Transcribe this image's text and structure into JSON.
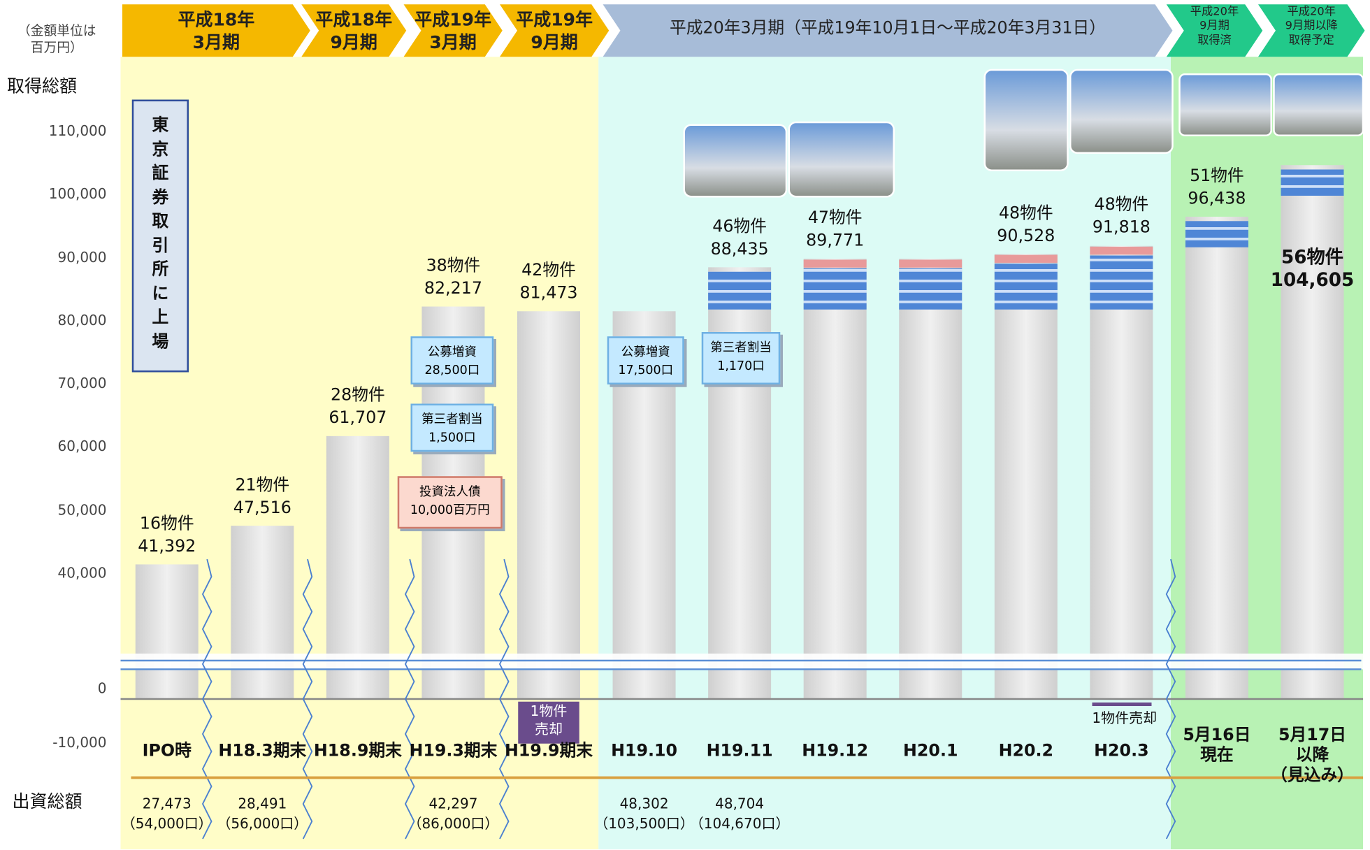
{
  "page": {
    "unit_note": "（金額単位は\n百万円）",
    "acquisition_label": "取得総額",
    "capital_label": "出資総額",
    "listing_note": "東\n京\n証\n券\n取\n引\n所\nに\n上\n場",
    "periods": [
      "平成18年\n3月期",
      "平成18年\n9月期",
      "平成19年\n3月期",
      "平成19年\n9月期",
      "平成20年3月期（平成19年10月1日～平成20年3月31日）",
      "平成20年\n9月期\n取得済",
      "平成20年\n9月期以降\n取得予定"
    ]
  },
  "chart_data": {
    "type": "bar",
    "categories": [
      "IPO時",
      "H18.3期末",
      "H18.9期末",
      "H19.3期末",
      "H19.9期末",
      "H19.10",
      "H19.11",
      "H19.12",
      "H20.1",
      "H20.2",
      "H20.3",
      "5月16日\n現在",
      "5月17日\n以降\n（見込み）"
    ],
    "values": [
      41392,
      47516,
      61707,
      82217,
      81473,
      81473,
      88435,
      89771,
      89771,
      90528,
      91818,
      96438,
      104605
    ],
    "value_labels": [
      "41,392",
      "47,516",
      "61,707",
      "82,217",
      "81,473",
      null,
      "88,435",
      "89,771",
      null,
      "90,528",
      "91,818",
      "96,438",
      "104,605"
    ],
    "property_counts": [
      "16物件",
      "21物件",
      "28物件",
      "38物件",
      "42物件",
      null,
      "46物件",
      "47物件",
      null,
      "48物件",
      "48物件",
      "51物件",
      "56物件"
    ],
    "color": "#dedede",
    "ylim": [
      -10000,
      110000
    ],
    "axis_break": [
      0,
      40000
    ],
    "yticks": [
      {
        "value": -10000,
        "label": "-10,000"
      },
      0,
      {
        "value": 40000,
        "label": "40,000"
      },
      {
        "value": 50000,
        "label": "50,000"
      },
      {
        "value": 60000,
        "label": "60,000"
      },
      {
        "value": 70000,
        "label": "70,000"
      },
      {
        "value": 80000,
        "label": "80,000"
      },
      {
        "value": 90000,
        "label": "90,000"
      },
      {
        "value": 100000,
        "label": "100,000"
      },
      {
        "value": 110000,
        "label": "110,000"
      }
    ],
    "grid": false,
    "callouts": [
      {
        "text": "公募増資\n28,500口",
        "kind": "blue"
      },
      {
        "text": "第三者割当\n1,500口",
        "kind": "blue"
      },
      {
        "text": "投資法人債\n10,000百万円",
        "kind": "pink"
      },
      {
        "text": "公募増資\n17,500口",
        "kind": "blue"
      },
      {
        "text": "第三者割当\n1,170口",
        "kind": "blue"
      }
    ],
    "sale_notes": [
      "1物件\n売却",
      "1物件売却"
    ],
    "capital_values": [
      "27,473\n（54,000口）",
      "28,491\n（56,000口）",
      null,
      "42,297\n（86,000口）",
      null,
      "48,302\n（103,500口）",
      "48,704\n（104,670口）",
      null,
      null,
      null,
      null,
      null,
      null
    ]
  }
}
